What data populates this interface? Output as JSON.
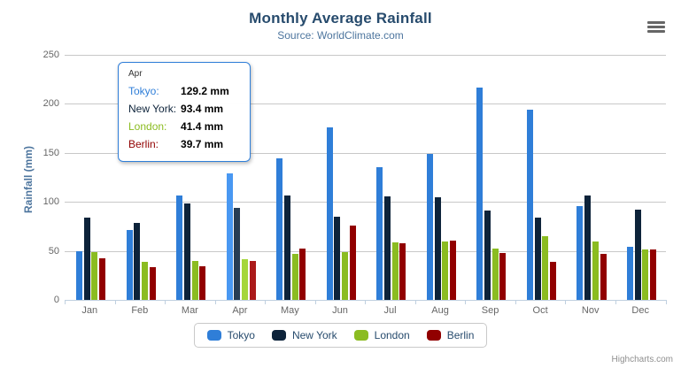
{
  "chart_data": {
    "type": "bar",
    "title": "Monthly Average Rainfall",
    "subtitle": "Source: WorldClimate.com",
    "categories": [
      "Jan",
      "Feb",
      "Mar",
      "Apr",
      "May",
      "Jun",
      "Jul",
      "Aug",
      "Sep",
      "Oct",
      "Nov",
      "Dec"
    ],
    "series": [
      {
        "name": "Tokyo",
        "color": "#2f7ed8",
        "values": [
          49.9,
          71.5,
          106.4,
          129.2,
          144.0,
          176.0,
          135.6,
          148.5,
          216.4,
          194.1,
          95.6,
          54.4
        ]
      },
      {
        "name": "New York",
        "color": "#0d233a",
        "values": [
          83.6,
          78.8,
          98.5,
          93.4,
          106.0,
          84.5,
          105.0,
          104.3,
          91.2,
          83.5,
          106.6,
          92.3
        ]
      },
      {
        "name": "London",
        "color": "#8bbc21",
        "values": [
          48.9,
          38.8,
          39.3,
          41.4,
          47.0,
          48.3,
          59.0,
          59.6,
          52.4,
          65.2,
          59.3,
          51.2
        ]
      },
      {
        "name": "Berlin",
        "color": "#910000",
        "values": [
          42.4,
          33.2,
          34.5,
          39.7,
          52.6,
          75.5,
          57.4,
          60.4,
          47.6,
          39.1,
          46.8,
          51.1
        ]
      }
    ],
    "xlabel": "",
    "ylabel": "Rainfall (mm)",
    "ylim": [
      0,
      250
    ],
    "yticks": [
      0,
      50,
      100,
      150,
      200,
      250
    ],
    "grid": true,
    "legend_position": "bottom",
    "value_suffix": " mm",
    "highlighted_category": "Apr"
  },
  "tooltip": {
    "header": "Apr",
    "border_color": "#2f7ed8",
    "rows": [
      {
        "name": "Tokyo:",
        "value": "129.2 mm"
      },
      {
        "name": "New York:",
        "value": "93.4 mm"
      },
      {
        "name": "London:",
        "value": "41.4 mm"
      },
      {
        "name": "Berlin:",
        "value": "39.7 mm"
      }
    ]
  },
  "credits": {
    "label": "Highcharts.com"
  }
}
